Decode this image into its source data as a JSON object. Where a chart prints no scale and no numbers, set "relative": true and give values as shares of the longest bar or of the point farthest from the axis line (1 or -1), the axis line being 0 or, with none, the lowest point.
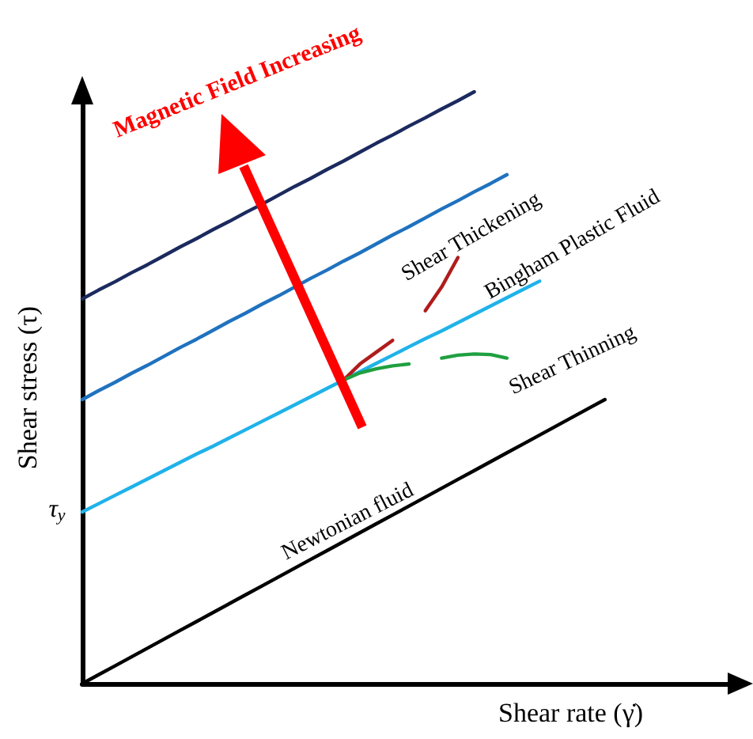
{
  "chart_data": {
    "type": "line",
    "relative": true,
    "xlabel": "Shear rate (γ̇)",
    "ylabel": "Shear stress (τ)",
    "marker": "none",
    "line_style": "solid",
    "categories": [
      null,
      null,
      null,
      null,
      null,
      null,
      null,
      null,
      null,
      null,
      null,
      null,
      null,
      null,
      null,
      null,
      null,
      null,
      null,
      null,
      null,
      null,
      null,
      null,
      null,
      null,
      null,
      null,
      null,
      null,
      null,
      null,
      null,
      null,
      null,
      null,
      null,
      null,
      null,
      null,
      null
    ],
    "series": [
      {
        "color": "#1b2a5e",
        "values": [
          0.65,
          0.665,
          0.679,
          0.694,
          0.708,
          0.723,
          0.738,
          0.752,
          0.767,
          0.781,
          0.796,
          0.81,
          0.825,
          0.84,
          0.854,
          0.869,
          0.883,
          0.898,
          0.913,
          0.927,
          0.942,
          0.956,
          0.971,
          0.985,
          1,
          null,
          null,
          null,
          null,
          null,
          null,
          null,
          null,
          null,
          null,
          null,
          null,
          null,
          null,
          null,
          null
        ]
      },
      {
        "color": "#1f72bf",
        "values": [
          0.48,
          0.495,
          0.509,
          0.524,
          0.538,
          0.553,
          0.568,
          0.582,
          0.597,
          0.612,
          0.626,
          0.641,
          0.655,
          0.67,
          0.685,
          0.699,
          0.714,
          0.728,
          0.743,
          0.758,
          0.772,
          0.787,
          0.802,
          0.816,
          0.831,
          0.845,
          0.86,
          null,
          null,
          null,
          null,
          null,
          null,
          null,
          null,
          null,
          null,
          null,
          null,
          null,
          null
        ]
      },
      {
        "color": "#1fb2ea",
        "values": [
          0.29,
          0.304,
          0.318,
          0.332,
          0.346,
          0.36,
          0.374,
          0.388,
          0.401,
          0.415,
          0.429,
          0.443,
          0.457,
          0.471,
          0.485,
          0.499,
          0.513,
          0.527,
          0.541,
          0.555,
          0.569,
          0.583,
          0.596,
          0.61,
          0.624,
          0.638,
          0.652,
          0.666,
          0.68,
          null,
          null,
          null,
          null,
          null,
          null,
          null,
          null,
          null,
          null,
          null,
          null
        ]
      },
      {
        "color": "#000000",
        "values": [
          0,
          0.015,
          0.03,
          0.045,
          0.06,
          0.075,
          0.09,
          0.105,
          0.12,
          0.135,
          0.15,
          0.165,
          0.18,
          0.195,
          0.21,
          0.225,
          0.24,
          0.255,
          0.27,
          0.285,
          0.3,
          0.315,
          0.33,
          0.345,
          0.36,
          0.375,
          0.39,
          0.405,
          0.42,
          0.435,
          0.45,
          0.465,
          0.48,
          null,
          null,
          null,
          null,
          null,
          null,
          null,
          null
        ]
      },
      {
        "color": "#b01c1c",
        "values": [
          null,
          null,
          null,
          null,
          null,
          null,
          null,
          null,
          null,
          null,
          null,
          null,
          null,
          null,
          null,
          null,
          0.513,
          0.54,
          0.56,
          0.58,
          null,
          null,
          null,
          null,
          null,
          null,
          null,
          null,
          null,
          null,
          null,
          null,
          null,
          null,
          null,
          null,
          null,
          null,
          null,
          null,
          null
        ]
      },
      {
        "color": "#b01c1c",
        "values": [
          null,
          null,
          null,
          null,
          null,
          null,
          null,
          null,
          null,
          null,
          null,
          null,
          null,
          null,
          null,
          null,
          null,
          null,
          null,
          null,
          null,
          0.63,
          0.67,
          0.72,
          null,
          null,
          null,
          null,
          null,
          null,
          null,
          null,
          null,
          null,
          null,
          null,
          null,
          null,
          null,
          null,
          null
        ]
      },
      {
        "color": "#1fa040",
        "values": [
          null,
          null,
          null,
          null,
          null,
          null,
          null,
          null,
          null,
          null,
          null,
          null,
          null,
          null,
          null,
          null,
          0.513,
          0.525,
          0.532,
          0.537,
          0.54,
          null,
          null,
          null,
          null,
          null,
          null,
          null,
          null,
          null,
          null,
          null,
          null,
          null,
          null,
          null,
          null,
          null,
          null,
          null,
          null
        ]
      },
      {
        "color": "#1fa040",
        "values": [
          null,
          null,
          null,
          null,
          null,
          null,
          null,
          null,
          null,
          null,
          null,
          null,
          null,
          null,
          null,
          null,
          null,
          null,
          null,
          null,
          null,
          null,
          0.55,
          0.555,
          0.557,
          0.556,
          0.55,
          null,
          null,
          null,
          null,
          null,
          null,
          null,
          null,
          null,
          null,
          null,
          null,
          null,
          null
        ]
      }
    ],
    "annotations": [
      "Newtonian fluid",
      "Shear Thickening",
      "Bingham Plastic Fluid",
      "Shear Thinning",
      "τ$_{y}$",
      "Magnetic Field Increasing"
    ]
  }
}
